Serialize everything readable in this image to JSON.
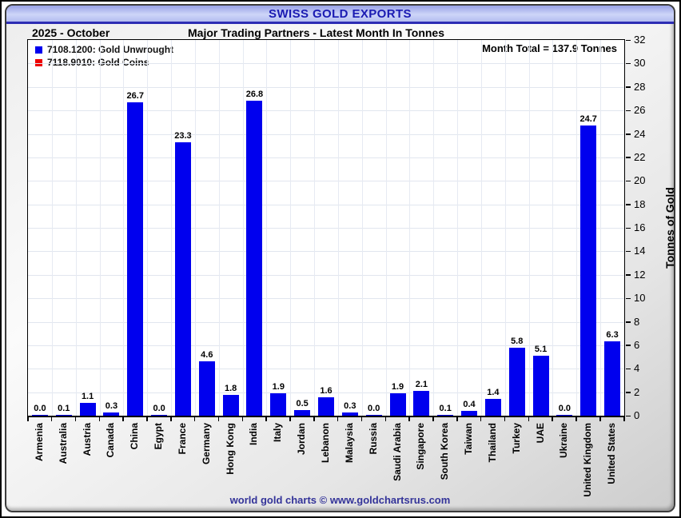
{
  "window": {
    "title": "SWISS GOLD EXPORTS"
  },
  "header": {
    "period": "2025 - October",
    "subtitle": "Major Trading Partners - Latest Month In Tonnes"
  },
  "legend": [
    {
      "label": "7108.1200: Gold Unwrought",
      "color": "#0000ee"
    },
    {
      "label": "7118.9010: Gold Coins",
      "color": "#ee0000"
    }
  ],
  "annotations": {
    "month_total": "Month Total = 137.9 Tonnes"
  },
  "footer": {
    "credit": "world gold charts © www.goldchartsrus.com"
  },
  "chart_data": {
    "type": "bar",
    "title": "SWISS GOLD EXPORTS",
    "subtitle": "Major Trading Partners - Latest Month In Tonnes",
    "period": "2025 - October",
    "categories": [
      "Armenia",
      "Australia",
      "Austria",
      "Canada",
      "China",
      "Egypt",
      "France",
      "Germany",
      "Hong Kong",
      "India",
      "Italy",
      "Jordan",
      "Lebanon",
      "Malaysia",
      "Russia",
      "Saudi Arabia",
      "Singapore",
      "South Korea",
      "Taiwan",
      "Thailand",
      "Turkey",
      "UAE",
      "Ukraine",
      "United Kingdom",
      "United States"
    ],
    "series": [
      {
        "name": "7108.1200: Gold Unwrought",
        "color": "#0000ee",
        "values": [
          0.0,
          0.1,
          1.1,
          0.3,
          26.7,
          0.0,
          23.3,
          4.6,
          1.8,
          26.8,
          1.9,
          0.5,
          1.6,
          0.3,
          0.0,
          1.9,
          2.1,
          0.1,
          0.4,
          1.4,
          5.8,
          5.1,
          0.0,
          24.7,
          6.3
        ]
      }
    ],
    "xlabel": "",
    "ylabel": "Tonnes of Gold",
    "ylim": [
      0,
      32
    ],
    "ytick_step": 2,
    "grid": true,
    "legend_position": "top-left",
    "month_total_tonnes": 137.9
  }
}
